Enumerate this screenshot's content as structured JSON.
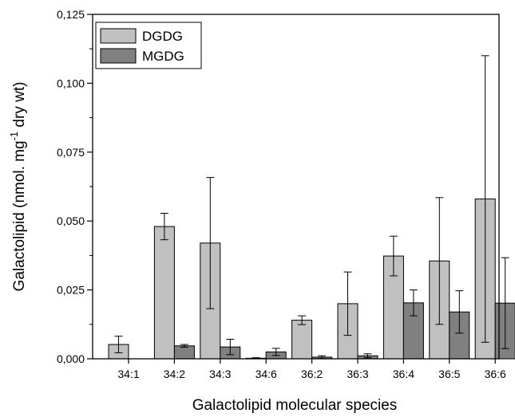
{
  "chart_data": {
    "type": "bar",
    "title": "",
    "xlabel": "Galactolipid molecular species",
    "ylabel": {
      "prefix": "Galactolipid (nmol. mg",
      "superscript": "-1",
      "suffix": " dry wt)"
    },
    "categories": [
      "34:1",
      "34:2",
      "34:3",
      "34:6",
      "36:2",
      "36:3",
      "36:4",
      "36:5",
      "36:6"
    ],
    "ylim": [
      0,
      0.125
    ],
    "yticks": [
      {
        "value": 0,
        "label": "0,000"
      },
      {
        "value": 0.025,
        "label": "0,025"
      },
      {
        "value": 0.05,
        "label": "0,050"
      },
      {
        "value": 0.075,
        "label": "0,075"
      },
      {
        "value": 0.1,
        "label": "0,100"
      },
      {
        "value": 0.125,
        "label": "0,125"
      }
    ],
    "legend_position": "top-left",
    "grid": false,
    "series": [
      {
        "name": "DGDG",
        "color": "#c0c0c0",
        "values": [
          0.0052,
          0.048,
          0.042,
          0.0002,
          0.014,
          0.02,
          0.0373,
          0.0355,
          0.058
        ],
        "errors": [
          0.003,
          0.0048,
          0.0238,
          0.0002,
          0.0016,
          0.0115,
          0.0072,
          0.023,
          0.052
        ]
      },
      {
        "name": "MGDG",
        "color": "#808080",
        "values": [
          0,
          0.0047,
          0.0043,
          0.0025,
          0.0006,
          0.0011,
          0.0203,
          0.017,
          0.0202
        ],
        "errors": [
          0,
          0.0005,
          0.0028,
          0.0013,
          0.0005,
          0.0007,
          0.0047,
          0.0077,
          0.0165
        ]
      }
    ]
  }
}
